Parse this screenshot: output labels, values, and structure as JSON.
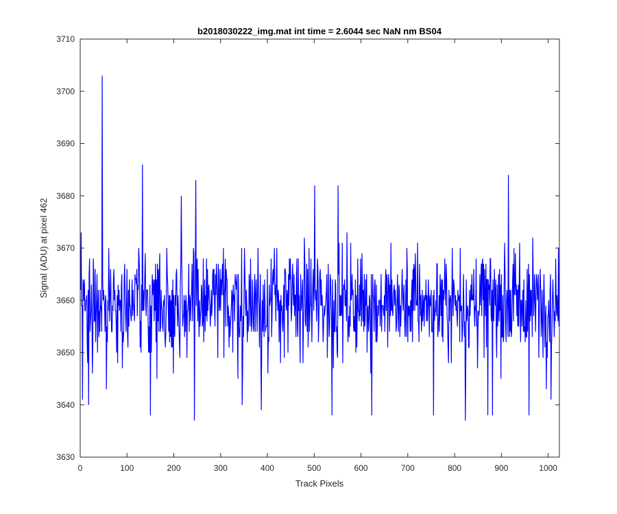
{
  "chart_data": {
    "type": "line",
    "title": "b2018030222_img.mat int time = 2.6044 sec  NaN nm BS04",
    "xlabel": "Track Pixels",
    "ylabel": "Signal (ADU) at pixel 462",
    "xlim": [
      0,
      1024
    ],
    "ylim": [
      3630,
      3710
    ],
    "xticks": [
      0,
      100,
      200,
      300,
      400,
      500,
      600,
      700,
      800,
      900,
      1000
    ],
    "yticks": [
      3630,
      3640,
      3650,
      3660,
      3670,
      3680,
      3690,
      3700,
      3710
    ],
    "grid": false,
    "legend": "none",
    "line_color": "#0000ff",
    "series": [
      {
        "length": 1024,
        "mean": 3659.5,
        "std": 7.0,
        "min": 3637,
        "max": 3703,
        "notable_points": [
          {
            "x": 4,
            "y": 3641
          },
          {
            "x": 17,
            "y": 3640
          },
          {
            "x": 46,
            "y": 3703
          },
          {
            "x": 55,
            "y": 3643
          },
          {
            "x": 132,
            "y": 3686
          },
          {
            "x": 149,
            "y": 3638
          },
          {
            "x": 215,
            "y": 3680
          },
          {
            "x": 243,
            "y": 3637
          },
          {
            "x": 246,
            "y": 3683
          },
          {
            "x": 345,
            "y": 3640
          },
          {
            "x": 386,
            "y": 3639
          },
          {
            "x": 500,
            "y": 3682
          },
          {
            "x": 537,
            "y": 3638
          },
          {
            "x": 550,
            "y": 3682
          },
          {
            "x": 622,
            "y": 3638
          },
          {
            "x": 754,
            "y": 3638
          },
          {
            "x": 822,
            "y": 3637
          },
          {
            "x": 870,
            "y": 3638
          },
          {
            "x": 880,
            "y": 3638
          },
          {
            "x": 914,
            "y": 3684
          },
          {
            "x": 958,
            "y": 3638
          },
          {
            "x": 1005,
            "y": 3641
          },
          {
            "x": 1020,
            "y": 3656
          }
        ]
      }
    ]
  }
}
